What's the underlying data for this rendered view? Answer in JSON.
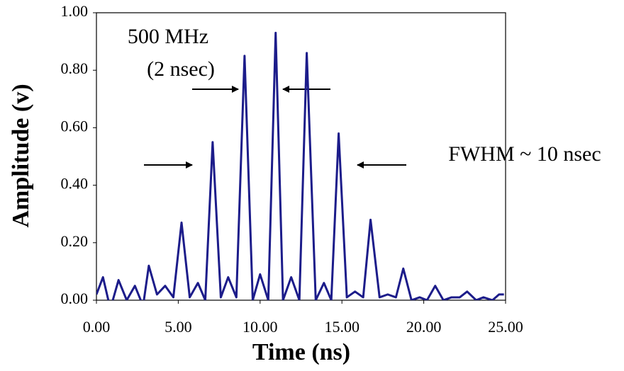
{
  "chart_data": {
    "type": "line",
    "x_label": "Time (ns)",
    "y_label": "Amplitude (v)",
    "annotations": [
      "500 MHz",
      "(2 nsec)",
      "FWHM ~ 10 nsec"
    ],
    "xlim": [
      0,
      25
    ],
    "ylim": [
      0,
      1
    ],
    "xticks": [
      {
        "value": 0,
        "label": "0.00"
      },
      {
        "value": 5,
        "label": "5.00"
      },
      {
        "value": 10,
        "label": "10.00"
      },
      {
        "value": 15,
        "label": "15.00"
      },
      {
        "value": 20,
        "label": "20.00"
      },
      {
        "value": 25,
        "label": "25.00"
      }
    ],
    "yticks": [
      {
        "value": 0,
        "label": "0.00"
      },
      {
        "value": 0.2,
        "label": "0.20"
      },
      {
        "value": 0.4,
        "label": "0.40"
      },
      {
        "value": 0.6,
        "label": "0.60"
      },
      {
        "value": 0.8,
        "label": "0.80"
      },
      {
        "value": 1,
        "label": "1.00"
      }
    ],
    "grid": false,
    "color": "#1c1c8a",
    "x": [
      0,
      0.4,
      0.85,
      1.35,
      1.85,
      2.35,
      2.85,
      3.2,
      3.7,
      4.2,
      4.7,
      5.2,
      5.7,
      6.2,
      6.65,
      7.1,
      7.6,
      8.05,
      8.55,
      9.05,
      9.55,
      10.0,
      10.5,
      10.95,
      11.4,
      11.9,
      12.4,
      12.85,
      13.4,
      13.9,
      14.35,
      14.8,
      15.3,
      15.8,
      16.3,
      16.75,
      17.3,
      17.8,
      18.3,
      18.75,
      19.25,
      19.75,
      20.2,
      20.7,
      21.2,
      21.7,
      22.2,
      22.65,
      23.2,
      23.65,
      24.2,
      24.6,
      24.9
    ],
    "values": [
      0.02,
      0.08,
      -0.03,
      0.07,
      0.0,
      0.05,
      -0.02,
      0.12,
      0.02,
      0.05,
      0.01,
      0.27,
      0.01,
      0.06,
      0.0,
      0.55,
      0.01,
      0.08,
      0.01,
      0.85,
      0.0,
      0.09,
      0.0,
      0.93,
      0.0,
      0.08,
      0.0,
      0.86,
      0.0,
      0.06,
      0.0,
      0.58,
      0.01,
      0.03,
      0.01,
      0.28,
      0.01,
      0.02,
      0.01,
      0.11,
      0.0,
      0.01,
      0.0,
      0.05,
      0.0,
      0.01,
      0.01,
      0.03,
      0.0,
      0.01,
      0.0,
      0.02,
      0.02
    ]
  }
}
